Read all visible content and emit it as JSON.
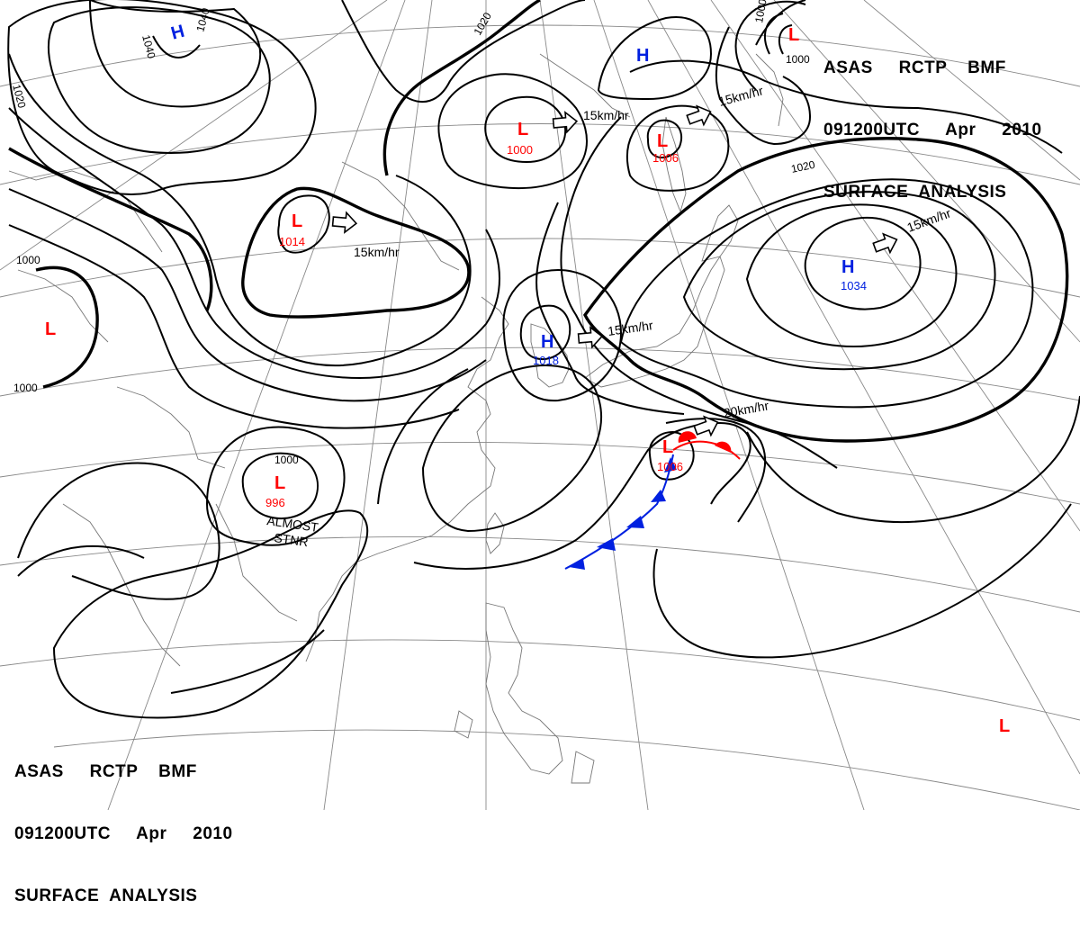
{
  "header": {
    "line1": "ASAS     RCTP    BMF",
    "line2": "091200UTC     Apr     2010",
    "line3": "SURFACE  ANALYSIS"
  },
  "systems": [
    {
      "type": "H",
      "pressure": ""
    },
    {
      "type": "L",
      "pressure": "1014"
    },
    {
      "type": "L",
      "pressure": "1000"
    },
    {
      "type": "L",
      "pressure": "1006"
    },
    {
      "type": "H",
      "pressure": ""
    },
    {
      "type": "L",
      "pressure": ""
    },
    {
      "type": "H",
      "pressure": "1034"
    },
    {
      "type": "H",
      "pressure": "1018"
    },
    {
      "type": "L",
      "pressure": "1006"
    },
    {
      "type": "L",
      "pressure": "996"
    },
    {
      "type": "L",
      "pressure": ""
    },
    {
      "type": "L",
      "pressure": ""
    }
  ],
  "movements": [
    {
      "speed": "15km/hr"
    },
    {
      "speed": "15km/hr"
    },
    {
      "speed": "15km/hr"
    },
    {
      "speed": "15km/hr"
    },
    {
      "speed": "15km/hr"
    },
    {
      "speed": "20km/hr"
    }
  ],
  "isobar_labels": [
    "1040",
    "1040",
    "1020",
    "1020",
    "1020",
    "1000",
    "1000",
    "1000",
    "1000",
    "1000"
  ],
  "annotations": {
    "stationary_note_line1": "ALMOST",
    "stationary_note_line2": "STNR"
  },
  "colors": {
    "low": "#ff0000",
    "high": "#0020e0",
    "cold_front": "#0020e0",
    "warm_front": "#ff0000",
    "isobar": "#000000"
  }
}
